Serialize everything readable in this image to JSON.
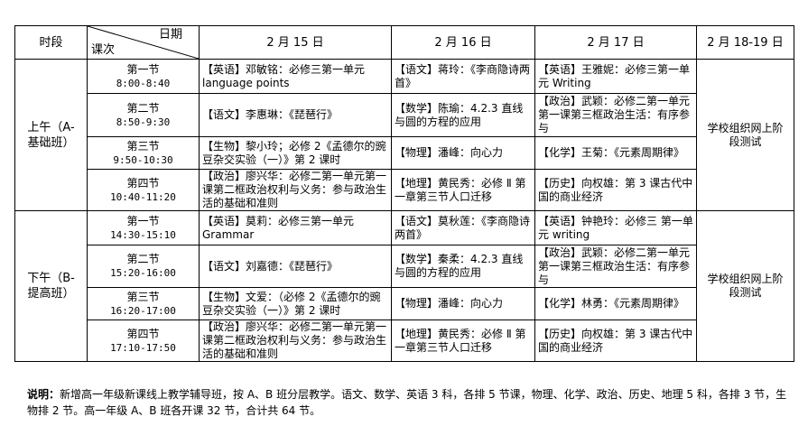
{
  "header": {
    "period": "时段",
    "date_label": "日期",
    "lesson_label": "课次",
    "dates": [
      "2 月 15 日",
      "2 月 16 日",
      "2 月 17 日",
      "2 月 18-19 日"
    ]
  },
  "sessions": [
    {
      "name": "上午（A-基础班）",
      "exam": "学校组织网上阶段测试",
      "rows": [
        {
          "lesson": "第一节",
          "time": "8:00-8:40",
          "d15": "【英语】邓敏铭：必修三第一单元 language points",
          "d16": "【语文】蒋玲：《李商隐诗两首》",
          "d17": "【英语】王雅妮：必修三第一单元 Writing"
        },
        {
          "lesson": "第二节",
          "time": "8:50-9:30",
          "d15": "【语文】李惠琳：《琵琶行》",
          "d16": "【数学】陈瑜：4.2.3 直线与圆的方程的应用",
          "d17": "【政治】武颖：必修二第一单元第一课第三框政治生活：有序参与"
        },
        {
          "lesson": "第三节",
          "time": "9:50-10:30",
          "d15": "【生物】黎小玲；必修 2《孟德尔的豌豆杂交实验（一）》第 2 课时",
          "d16": "【物理】潘峰：向心力",
          "d17": "【化学】王菊：《元素周期律》"
        },
        {
          "lesson": "第四节",
          "time": "10:40-11:20",
          "d15": "【政治】廖兴华：必修二第一单元第一课第二框政治权利与义务：参与政治生活的基础和准则",
          "d16": "【地理】黄民秀：必修 Ⅱ 第一章第三节人口迁移",
          "d17": "【历史】向权雄：第 3 课古代中国的商业经济"
        }
      ]
    },
    {
      "name": "下午（B-提高班）",
      "exam": "学校组织网上阶段测试",
      "rows": [
        {
          "lesson": "第一节",
          "time": "14:30-15:10",
          "d15": "【英语】莫莉：必修三第一单元 Grammar",
          "d16": "【语文】莫秋莲：《李商隐诗两首》",
          "d17": "【英语】钟艳玲：必修三 第一单元 writing"
        },
        {
          "lesson": "第二节",
          "time": "15:20-16:00",
          "d15": "【语文】刘嘉德：《琵琶行》",
          "d16": "【数学】秦柔：4.2.3 直线与圆的方程的应用",
          "d17": "【政治】武颖：必修二第一单元第一课第三框政治生活：有序参与"
        },
        {
          "lesson": "第三节",
          "time": "16:20-17:00",
          "d15": "【生物】文爱：（必修 2《孟德尔的豌豆杂交实验（一）》第 2 课时",
          "d16": "【物理】潘峰：向心力",
          "d17": "【化学】林勇：《元素周期律》"
        },
        {
          "lesson": "第四节",
          "time": "17:10-17:50",
          "d15": "【政治】廖兴华：必修二第一单元第一课第二框政治权利与义务：参与政治生活的基础和准则",
          "d16": "【地理】黄民秀：必修 Ⅱ 第一章第三节人口迁移",
          "d17": "【历史】向权雄：第 3 课古代中国的商业经济"
        }
      ]
    }
  ],
  "note": {
    "label": "说明：",
    "text": "新增高一年级新课线上教学辅导班，按 A、B 班分层教学。语文、数学、英语 3 科，各排 5 节课，物理、化学、政治、历史、地理 5 科，各排 3 节，生物排 2 节。高一年级 A、B 班各开课 32 节，合计共 64 节。"
  }
}
